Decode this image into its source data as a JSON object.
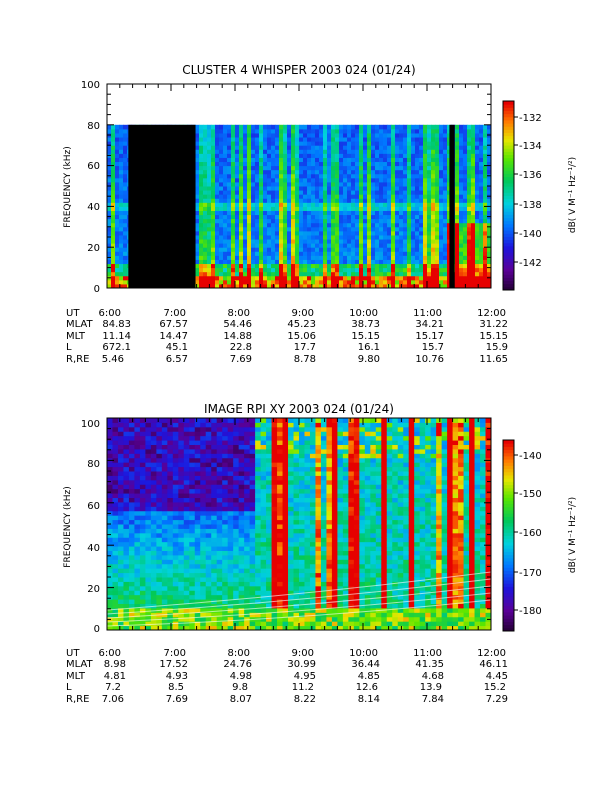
{
  "chart_data": [
    {
      "type": "heatmap",
      "title": "CLUSTER 4 WHISPER 2003 024 (01/24)",
      "ylabel": "FREQUENCY (kHz)",
      "ylim": [
        0,
        100
      ],
      "yticks": [
        "0",
        "20",
        "40",
        "60",
        "80",
        "100"
      ],
      "xticks": [
        "6:00",
        "7:00",
        "8:00",
        "9:00",
        "10:00",
        "11:00",
        "12:00"
      ],
      "colorbar": {
        "label": "dB( V M⁻¹ Hz⁻¹/²)",
        "range": [
          -144,
          -131
        ],
        "ticks": [
          "-132",
          "-134",
          "-136",
          "-138",
          "-140",
          "-142"
        ]
      },
      "data_top_khz": 80,
      "data_gaps_ut": [
        [
          "6:20",
          "7:23"
        ],
        [
          "11:21",
          "11:26"
        ]
      ],
      "ephemeris": {
        "row_labels": [
          "UT",
          "MLAT",
          "MLT",
          "L",
          "R,RE"
        ],
        "rows": [
          [
            "6:00",
            "7:00",
            "8:00",
            "9:00",
            "10:00",
            "11:00",
            "12:00"
          ],
          [
            "84.83",
            "67.57",
            "54.46",
            "45.23",
            "38.73",
            "34.21",
            "31.22"
          ],
          [
            "11.14",
            "14.47",
            "14.88",
            "15.06",
            "15.15",
            "15.17",
            "15.15"
          ],
          [
            "672.1",
            "45.1",
            "22.8",
            "17.7",
            "16.1",
            "15.7",
            "15.9"
          ],
          [
            "5.46",
            "6.57",
            "7.69",
            "8.78",
            "9.80",
            "10.76",
            "11.65"
          ]
        ]
      }
    },
    {
      "type": "heatmap",
      "title": "IMAGE RPI XY 2003 024 (01/24)",
      "ylabel": "FREQUENCY (kHz)",
      "ylim": [
        0,
        100
      ],
      "yticks": [
        "0",
        "20",
        "40",
        "60",
        "80",
        "100"
      ],
      "xticks": [
        "6:00",
        "7:00",
        "8:00",
        "9:00",
        "10:00",
        "11:00",
        "12:00"
      ],
      "colorbar": {
        "label": "dB( V M⁻¹ Hz⁻¹/²)",
        "range": [
          -185,
          -135
        ],
        "ticks": [
          "-140",
          "-150",
          "-160",
          "-170",
          "-180"
        ]
      },
      "ephemeris": {
        "row_labels": [
          "UT",
          "MLAT",
          "MLT",
          "L",
          "R,RE"
        ],
        "rows": [
          [
            "6:00",
            "7:00",
            "8:00",
            "9:00",
            "10:00",
            "11:00",
            "12:00"
          ],
          [
            "8.98",
            "17.52",
            "24.76",
            "30.99",
            "36.44",
            "41.35",
            "46.11"
          ],
          [
            "4.81",
            "4.93",
            "4.98",
            "4.95",
            "4.85",
            "4.68",
            "4.45"
          ],
          [
            "7.2",
            "8.5",
            "9.8",
            "11.2",
            "12.6",
            "13.9",
            "15.2"
          ],
          [
            "7.06",
            "7.69",
            "8.07",
            "8.22",
            "8.14",
            "7.84",
            "7.29"
          ]
        ]
      }
    }
  ]
}
